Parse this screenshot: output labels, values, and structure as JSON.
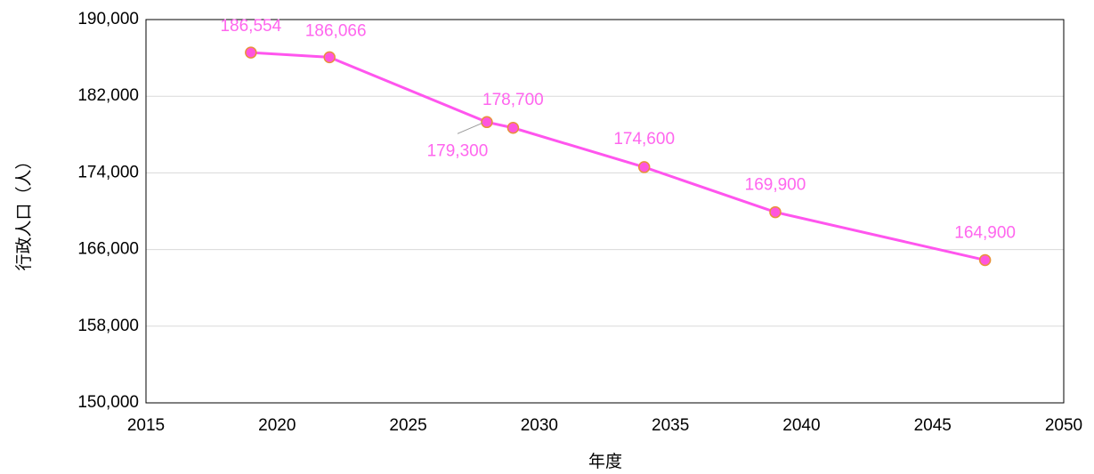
{
  "chart_data": {
    "type": "line",
    "x": [
      2019,
      2022,
      2028,
      2029,
      2034,
      2039,
      2047
    ],
    "series": [
      {
        "name": "行政人口",
        "color": "#ff55ee",
        "marker_color": "#ff55dd",
        "marker_edge": "#e8923a",
        "values": [
          186554,
          186066,
          179300,
          178700,
          174600,
          169900,
          164900
        ],
        "value_labels": [
          "186,554",
          "186,066",
          "179,300",
          "178,700",
          "174,600",
          "169,900",
          "164,900"
        ]
      }
    ],
    "xlim": [
      2015,
      2050
    ],
    "xticks": [
      2015,
      2020,
      2025,
      2030,
      2035,
      2040,
      2045,
      2050
    ],
    "ylim": [
      150000,
      190000
    ],
    "yticks": [
      {
        "value": 150000,
        "label": "150,000"
      },
      {
        "value": 158000,
        "label": "158,000"
      },
      {
        "value": 166000,
        "label": "166,000"
      },
      {
        "value": 174000,
        "label": "174,000"
      },
      {
        "value": 182000,
        "label": "182,000"
      },
      {
        "value": 190000,
        "label": "190,000"
      }
    ],
    "xlabel": "年度",
    "ylabel": "行政人口（人）",
    "grid": true
  }
}
